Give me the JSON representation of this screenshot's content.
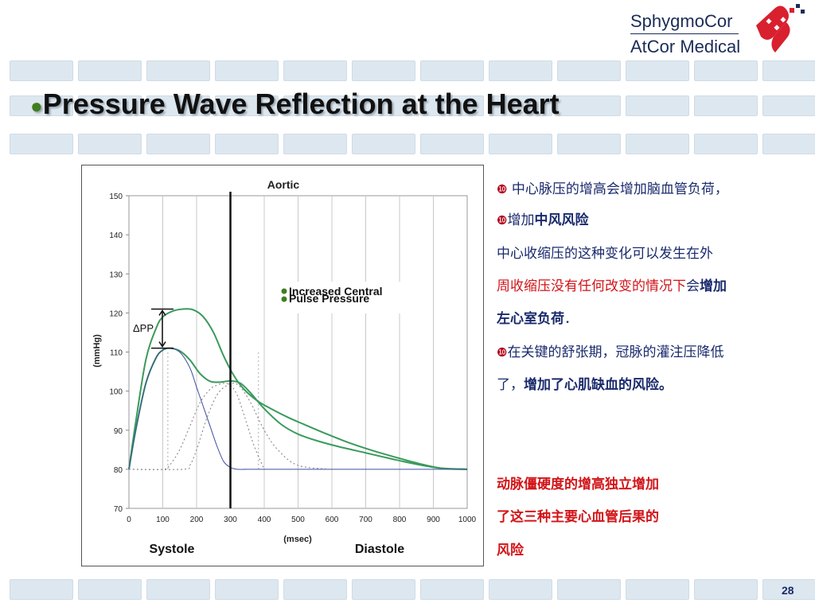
{
  "slide": {
    "title": "Pressure Wave Reflection at the Heart",
    "title_bullet": "●",
    "page_number": "28"
  },
  "logo": {
    "line1": "SphygmoCor",
    "line2": "AtCor Medical",
    "icon": "heart-logo-icon"
  },
  "chart_data": {
    "type": "line",
    "title": "Aortic",
    "xlabel": "(msec)",
    "ylabel": "(mmHg)",
    "xlim": [
      0,
      1000
    ],
    "ylim": [
      70,
      150
    ],
    "xticks": [
      "0",
      "100",
      "200",
      "300",
      "400",
      "500",
      "600",
      "700",
      "800",
      "900",
      "1000"
    ],
    "yticks": [
      "70",
      "80",
      "90",
      "100",
      "110",
      "120",
      "130",
      "140",
      "150"
    ],
    "grid": "vertical",
    "region_labels": [
      "Systole",
      "Diastole"
    ],
    "delta_label": "ΔPP",
    "legend": [
      "Increased Central",
      "Pulse Pressure"
    ],
    "legend_placement": "center-right",
    "end_systole_x": 300,
    "series": [
      {
        "color": "#3a9a5c",
        "style": "solid",
        "x": [
          0,
          20,
          50,
          80,
          100,
          130,
          160,
          190,
          220,
          250,
          280,
          310,
          340,
          380,
          420,
          470,
          520,
          580,
          650,
          720,
          800,
          870,
          930,
          1000
        ],
        "y": [
          80,
          92,
          108,
          116,
          119,
          120.5,
          121,
          120.8,
          119,
          115,
          109,
          104,
          100.5,
          97.5,
          95.5,
          93.3,
          91.4,
          89.2,
          86.8,
          84.8,
          82.8,
          81.2,
          80.2,
          80
        ]
      },
      {
        "color": "#3a9a5c",
        "style": "solid",
        "x": [
          0,
          20,
          50,
          80,
          100,
          120,
          150,
          180,
          210,
          240,
          270,
          300,
          330,
          360,
          400,
          450,
          500,
          560,
          620,
          700,
          780,
          850,
          920,
          1000
        ],
        "y": [
          80,
          90,
          102,
          108.5,
          110.5,
          111,
          110.3,
          108,
          104.5,
          102.5,
          102.3,
          102.6,
          102,
          99.5,
          95.5,
          91.5,
          89,
          87.2,
          85.8,
          84.2,
          82.6,
          81.3,
          80.3,
          80
        ]
      },
      {
        "color": "#3d4fa0",
        "style": "solid",
        "x": [
          0,
          20,
          50,
          80,
          100,
          120,
          150,
          180,
          200,
          220,
          240,
          260,
          280,
          300,
          320,
          350,
          400,
          1000
        ],
        "y": [
          80,
          90,
          102,
          108.5,
          110.5,
          111,
          110,
          106,
          101,
          96,
          91,
          86,
          82,
          80.5,
          80,
          80,
          80,
          80
        ]
      },
      {
        "color": "#909090",
        "style": "dotted",
        "x": [
          0,
          100,
          120,
          150,
          180,
          210,
          240,
          260,
          280,
          300,
          320,
          340,
          370,
          400
        ],
        "y": [
          80,
          80,
          81,
          85,
          91,
          97,
          100.5,
          101.5,
          102,
          101.5,
          99,
          94,
          86,
          80
        ]
      },
      {
        "color": "#909090",
        "style": "dotted",
        "x": [
          0,
          160,
          180,
          200,
          230,
          260,
          290,
          310,
          330,
          360,
          400,
          440,
          500,
          600
        ],
        "y": [
          80,
          80,
          81,
          85,
          93,
          99,
          101.5,
          102,
          101,
          97,
          90,
          85,
          81,
          80
        ]
      }
    ],
    "markers": [
      {
        "x": 115,
        "style": "dotted",
        "color": "#aaaaaa"
      },
      {
        "x": 383,
        "style": "dotted",
        "color": "#aaaaaa"
      }
    ],
    "delta_range": [
      111,
      121
    ]
  },
  "right_text": {
    "num_glyph": "❿",
    "item1": " 中心脉压的增高会增加脑血管负荷，",
    "item2_a": "增加",
    "item2_b": "中风风险",
    "para_line1": "  中心收缩压的这种变化可以发生在外",
    "para_line2_a": "周收缩压没有任何改变的情况下",
    "para_line2_b": "会",
    "para_line2_c": "增加",
    "para_line3": "左心室负荷",
    "para_line3_end": "．",
    "item3_line1": "在关键的舒张期，冠脉的灌注压降低",
    "item3_line2_a": "了，",
    "item3_line2_b": "增加了心肌缺血的风险。",
    "conclusion_line1": " 动脉僵硬度的增高独立增加",
    "conclusion_line2": "了这三种主要心血管后果的",
    "conclusion_line3": "风险"
  }
}
